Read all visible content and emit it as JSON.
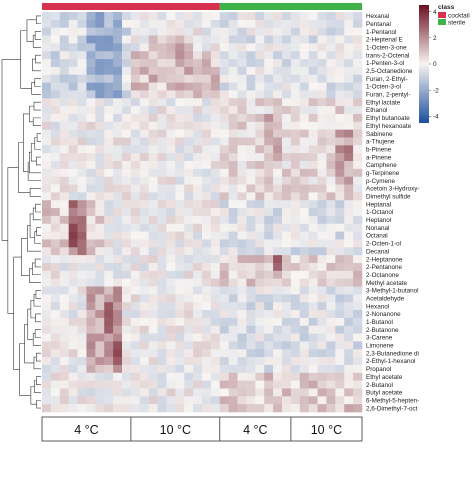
{
  "chart_data": {
    "type": "heatmap",
    "annotation_title": "class",
    "classes": [
      {
        "name": "cocktail",
        "color": "#d7314d"
      },
      {
        "name": "sterile",
        "color": "#3fb24a"
      }
    ],
    "colorbar": {
      "ticks": [
        4,
        2,
        0,
        -2,
        -4
      ],
      "range": [
        -4.5,
        4.5
      ]
    },
    "palette": {
      "high": "#6b0f1f",
      "mid": "#f7f4f2",
      "low": "#1d4f9e"
    },
    "groups": [
      {
        "label": "4 °C",
        "start": 0,
        "end": 10
      },
      {
        "label": "10 °C",
        "start": 10,
        "end": 20
      },
      {
        "label": "4 °C",
        "start": 20,
        "end": 28
      },
      {
        "label": "10 °C",
        "start": 28,
        "end": 36
      }
    ],
    "class_split": 20,
    "n_columns": 36,
    "rows": [
      "Hexanal",
      "Pentanal",
      "1-Pentanol",
      "2-Heptenal E",
      "1-Octen-3-one",
      "trans-2-Octenal",
      "1-Penten-3-ol",
      "2,5-Octanedione",
      "Furan, 2-Ethyl-",
      "1-Octen-3-ol",
      "Furan, 2-pentyl-",
      "Ethyl lactate",
      "Ethanol",
      "Ethyl butanoate",
      "Ethyl hexanoate",
      "Sabinene",
      "a-Thujene",
      "b-Pinene",
      "a-Pinene",
      "Camphene",
      "g-Terpinene",
      "p-Cymene",
      "Acetoin 3-Hydroxy-",
      "Dimethyl sulfide",
      "Heptanal",
      "1-Octanol",
      "Heptanol",
      "Nonanal",
      "Octanal",
      "2-Octen-1-ol",
      "Decanal",
      "2-Heptanone",
      "2-Pentanone",
      "2-Octanone",
      "Methyl acetate",
      "3-Methyl-1-butanol",
      "Acetaldehyde",
      "Hexanol",
      "2-Nonanone",
      "1-Butanol",
      "2-Butanone",
      "3-Carene",
      "Limonene",
      "2,3-Butanedione di",
      "2-Ethyl-1-hexanol",
      "Propanol",
      "Ethyl acetate",
      "2-Butanol",
      "Butyl acetate",
      "6-Methyl-5-hepten-",
      "2,6-Dimethyl-7-oct"
    ],
    "blocks": [
      {
        "rows": [
          0,
          11
        ],
        "cols": [
          0,
          10
        ],
        "value": -0.6
      },
      {
        "rows": [
          0,
          11
        ],
        "cols": [
          5,
          9
        ],
        "value": -1.8
      },
      {
        "rows": [
          5,
          11
        ],
        "cols": [
          10,
          20
        ],
        "value": 0.9
      },
      {
        "rows": [
          3,
          9
        ],
        "cols": [
          12,
          17
        ],
        "value": 1.2
      },
      {
        "rows": [
          0,
          11
        ],
        "cols": [
          20,
          36
        ],
        "value": -0.3
      },
      {
        "rows": [
          11,
          24
        ],
        "cols": [
          20,
          36
        ],
        "value": 0.4
      },
      {
        "rows": [
          15,
          22
        ],
        "cols": [
          33,
          35
        ],
        "value": 1.6
      },
      {
        "rows": [
          13,
          20
        ],
        "cols": [
          25,
          27
        ],
        "value": 1.3
      },
      {
        "rows": [
          24,
          31
        ],
        "cols": [
          0,
          7
        ],
        "value": 0.8
      },
      {
        "rows": [
          24,
          31
        ],
        "cols": [
          3,
          5
        ],
        "value": 2.3
      },
      {
        "rows": [
          24,
          31
        ],
        "cols": [
          20,
          36
        ],
        "value": -0.4
      },
      {
        "rows": [
          31,
          35
        ],
        "cols": [
          20,
          36
        ],
        "value": 0.7
      },
      {
        "rows": [
          35,
          46
        ],
        "cols": [
          5,
          9
        ],
        "value": 1.5
      },
      {
        "rows": [
          35,
          46
        ],
        "cols": [
          20,
          36
        ],
        "value": -0.4
      },
      {
        "rows": [
          46,
          51
        ],
        "cols": [
          20,
          36
        ],
        "value": 0.8
      }
    ],
    "hot_cells": [
      {
        "row": 27,
        "col": 3,
        "value": 3.4
      },
      {
        "row": 28,
        "col": 3,
        "value": 3.6
      },
      {
        "row": 29,
        "col": 3,
        "value": 3.4
      },
      {
        "row": 27,
        "col": 4,
        "value": 2.6
      },
      {
        "row": 28,
        "col": 4,
        "value": 2.9
      },
      {
        "row": 29,
        "col": 4,
        "value": 2.6
      },
      {
        "row": 37,
        "col": 7,
        "value": 3.0
      },
      {
        "row": 38,
        "col": 7,
        "value": 3.1
      },
      {
        "row": 39,
        "col": 7,
        "value": 3.0
      },
      {
        "row": 40,
        "col": 7,
        "value": 2.9
      },
      {
        "row": 42,
        "col": 8,
        "value": 3.2
      },
      {
        "row": 43,
        "col": 8,
        "value": 3.4
      },
      {
        "row": 44,
        "col": 8,
        "value": 3.0
      },
      {
        "row": 31,
        "col": 26,
        "value": 3.1
      },
      {
        "row": 32,
        "col": 26,
        "value": 2.8
      },
      {
        "row": 17,
        "col": 34,
        "value": 2.6
      },
      {
        "row": 18,
        "col": 34,
        "value": 2.4
      }
    ]
  }
}
